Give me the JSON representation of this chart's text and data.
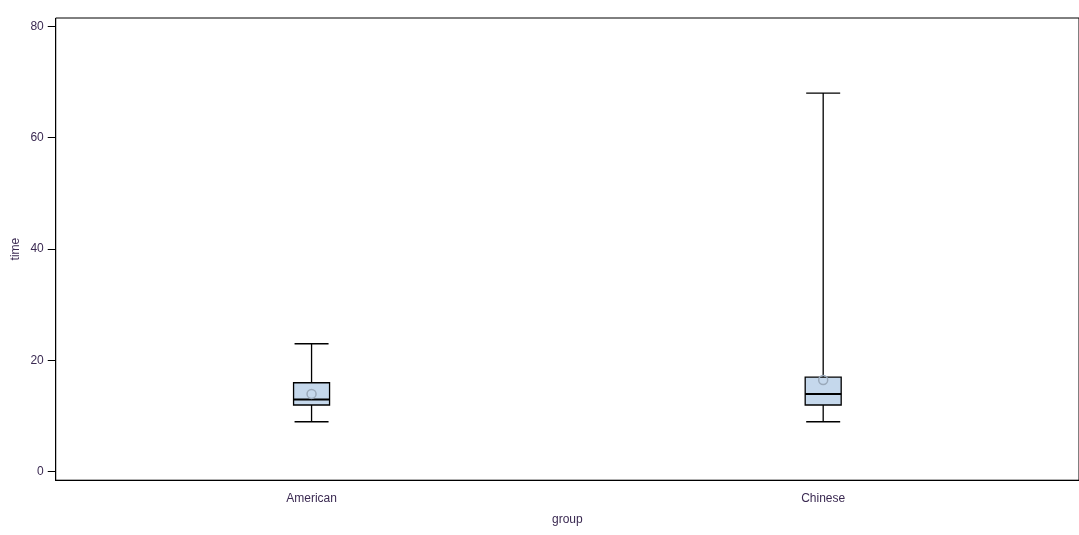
{
  "chart_data": {
    "type": "box",
    "xlabel": "group",
    "ylabel": "time",
    "categories": [
      "American",
      "Chinese"
    ],
    "color": "#c5d8ec",
    "boxes": [
      {
        "low": 9,
        "q1": 12,
        "median": 13,
        "q3": 16,
        "high": 23,
        "mean": 14
      },
      {
        "low": 9,
        "q1": 12,
        "median": 14,
        "q3": 17,
        "high": 68,
        "mean": 16.5
      }
    ],
    "ylim": [
      -1.5,
      81.5
    ],
    "yticks": [
      0,
      20,
      40,
      60,
      80
    ]
  }
}
